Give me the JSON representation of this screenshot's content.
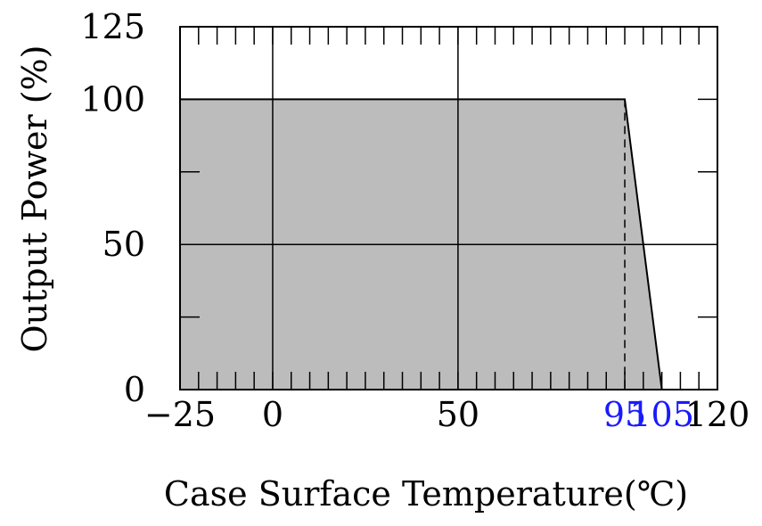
{
  "chart_data": {
    "type": "area",
    "title": "",
    "xlabel": "Case Surface Temperature(℃)",
    "ylabel": "Output Power (%)",
    "xlim": [
      -25,
      120
    ],
    "ylim": [
      0,
      125
    ],
    "grid": true,
    "x": [
      -25,
      95,
      105
    ],
    "y": [
      100,
      100,
      0
    ],
    "x_ticks": [
      {
        "value": -25,
        "label": "−25",
        "color": "#000000"
      },
      {
        "value": 0,
        "label": "0",
        "color": "#000000"
      },
      {
        "value": 50,
        "label": "50",
        "color": "#000000"
      },
      {
        "value": 95,
        "label": "95",
        "color": "#1a1aff"
      },
      {
        "value": 105,
        "label": "105",
        "color": "#1a1aff"
      },
      {
        "value": 120,
        "label": "120",
        "color": "#000000"
      }
    ],
    "y_ticks": [
      {
        "value": 0,
        "label": "0"
      },
      {
        "value": 50,
        "label": "50"
      },
      {
        "value": 100,
        "label": "100"
      },
      {
        "value": 125,
        "label": "125"
      }
    ],
    "minor_x_step": 5,
    "minor_y_step": 25,
    "grid_x": [
      0,
      50
    ],
    "grid_y": [
      50
    ],
    "dashed_marker_x": 95,
    "fill_color": "#bcbcbc",
    "line_color": "#000000"
  }
}
